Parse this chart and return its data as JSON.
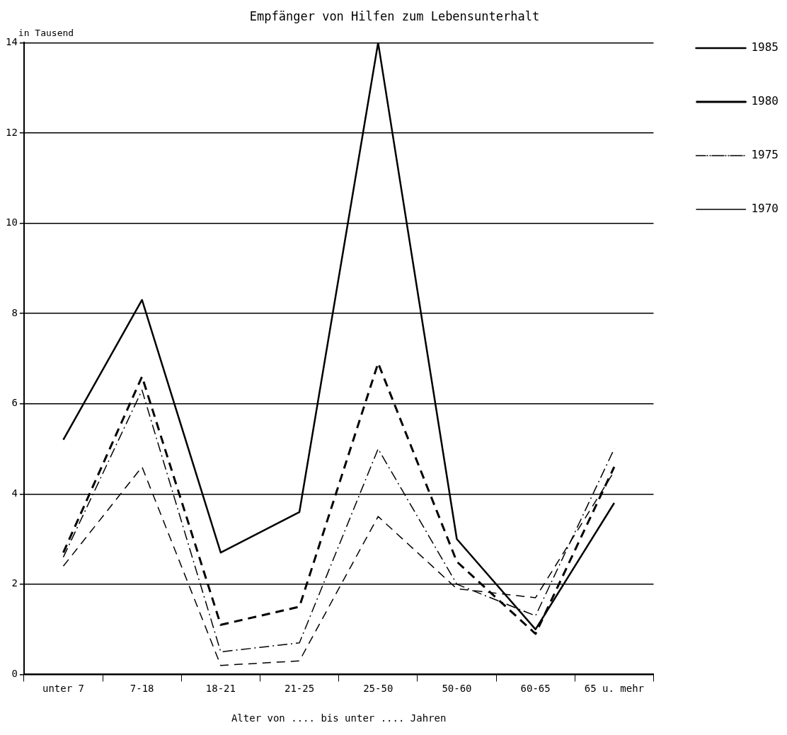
{
  "chart_data": {
    "type": "line",
    "title": "Empfänger von Hilfen zum Lebensunterhalt",
    "ylabel": "in Tausend",
    "xlabel": "Alter von .... bis unter .... Jahren",
    "categories": [
      "unter 7",
      "7-18",
      "18-21",
      "21-25",
      "25-50",
      "50-60",
      "60-65",
      "65 u. mehr"
    ],
    "series": [
      {
        "name": "1985",
        "color": "#000000",
        "line_style": "solid",
        "values": [
          5.2,
          8.3,
          2.7,
          3.6,
          14.0,
          3.0,
          1.0,
          3.8
        ]
      },
      {
        "name": "1980",
        "color": "#000000",
        "line_style": "dashed",
        "values": [
          2.7,
          6.6,
          1.1,
          1.5,
          6.9,
          2.5,
          0.9,
          4.6
        ]
      },
      {
        "name": "1975",
        "color": "#000000",
        "line_style": "dashdot",
        "values": [
          2.6,
          6.3,
          0.5,
          0.7,
          5.0,
          2.0,
          1.3,
          5.0
        ]
      },
      {
        "name": "1970",
        "color": "#000000",
        "line_style": "dashed",
        "values": [
          2.4,
          4.6,
          0.2,
          0.3,
          3.5,
          1.9,
          1.7,
          4.5
        ]
      }
    ],
    "ylim": [
      0,
      14
    ],
    "yticks": [
      0,
      2,
      4,
      6,
      8,
      10,
      12,
      14
    ],
    "grid": "y",
    "legend": "top right",
    "marker": "none"
  }
}
